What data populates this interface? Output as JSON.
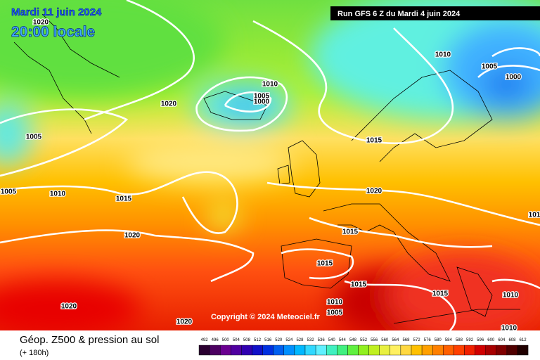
{
  "header": {
    "date": "Mardi 11 juin 2024",
    "time": "20:00 locale",
    "run": "Run GFS 6 Z du Mardi 4 juin 2024"
  },
  "copyright": "Copyright © 2024 Meteociel.fr",
  "footer": {
    "title": "Géop. Z500 & pression au sol",
    "subtitle": "(+ 180h)"
  },
  "scale": {
    "labels": [
      492,
      496,
      500,
      504,
      508,
      512,
      516,
      520,
      524,
      528,
      532,
      536,
      540,
      544,
      548,
      552,
      556,
      560,
      564,
      568,
      572,
      576,
      580,
      584,
      588,
      592,
      596,
      600,
      604,
      608,
      612
    ],
    "colors": [
      "#2a0030",
      "#4b0060",
      "#6a0090",
      "#5000a0",
      "#3000b0",
      "#1010c8",
      "#0030e0",
      "#0060f0",
      "#0090ff",
      "#00b8ff",
      "#30d8ff",
      "#60f0ff",
      "#40f0c0",
      "#40f080",
      "#60f040",
      "#90f020",
      "#c0f020",
      "#e8f040",
      "#fff060",
      "#ffd840",
      "#ffc000",
      "#ffa000",
      "#ff8000",
      "#ff6000",
      "#ff4000",
      "#f02000",
      "#d00000",
      "#a80000",
      "#800000",
      "#500000",
      "#200000"
    ]
  },
  "isobars": [
    1020,
    1020,
    1010,
    1005,
    1000,
    1005,
    1010,
    1005,
    1015,
    1020,
    1015,
    1020,
    1015,
    1015,
    1015,
    1010,
    1005,
    1020,
    1020,
    1015,
    1010,
    1010,
    1010,
    1005,
    1000,
    101
  ]
}
